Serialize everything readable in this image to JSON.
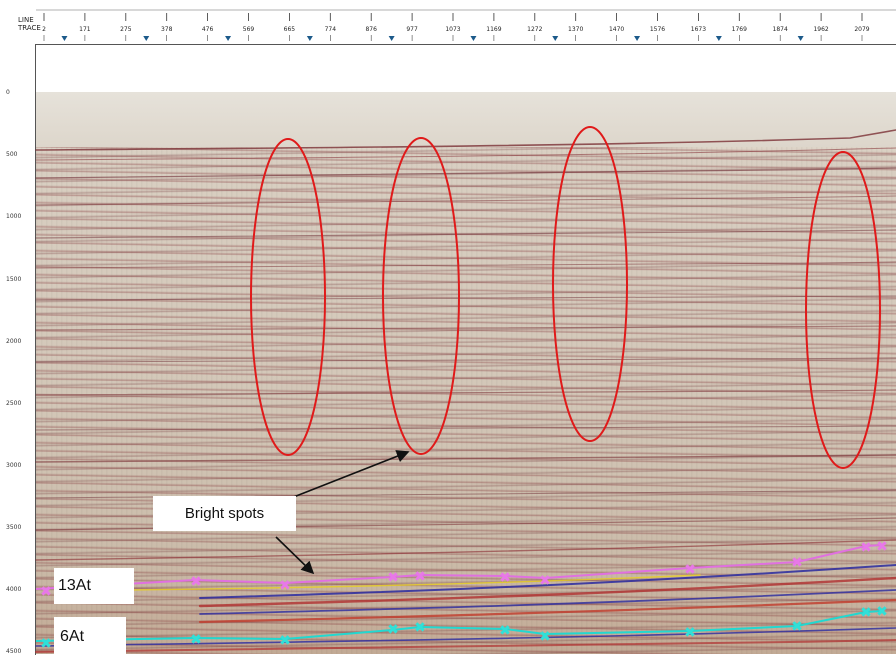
{
  "header": {
    "row_labels": [
      "LINE",
      "TRACE"
    ],
    "trace_numbers": [
      "2",
      "171",
      "275",
      "378",
      "476",
      "569",
      "665",
      "774",
      "876",
      "977",
      "1073",
      "1169",
      "1272",
      "1370",
      "1470",
      "1576",
      "1673",
      "1769",
      "1874",
      "1962",
      "2079"
    ]
  },
  "depth_axis": {
    "ticks": [
      "0",
      "500",
      "1000",
      "1500",
      "2000",
      "2500",
      "3000",
      "3500",
      "4000",
      "4500"
    ]
  },
  "annotations": {
    "bright_spots_label": "Bright spots",
    "horizon_upper_label": "13At",
    "horizon_lower_label": "6At",
    "ellipse_color": "#e01a1a"
  },
  "horizons": {
    "upper_color": "#e070e0",
    "lower_color": "#22d8d0"
  }
}
